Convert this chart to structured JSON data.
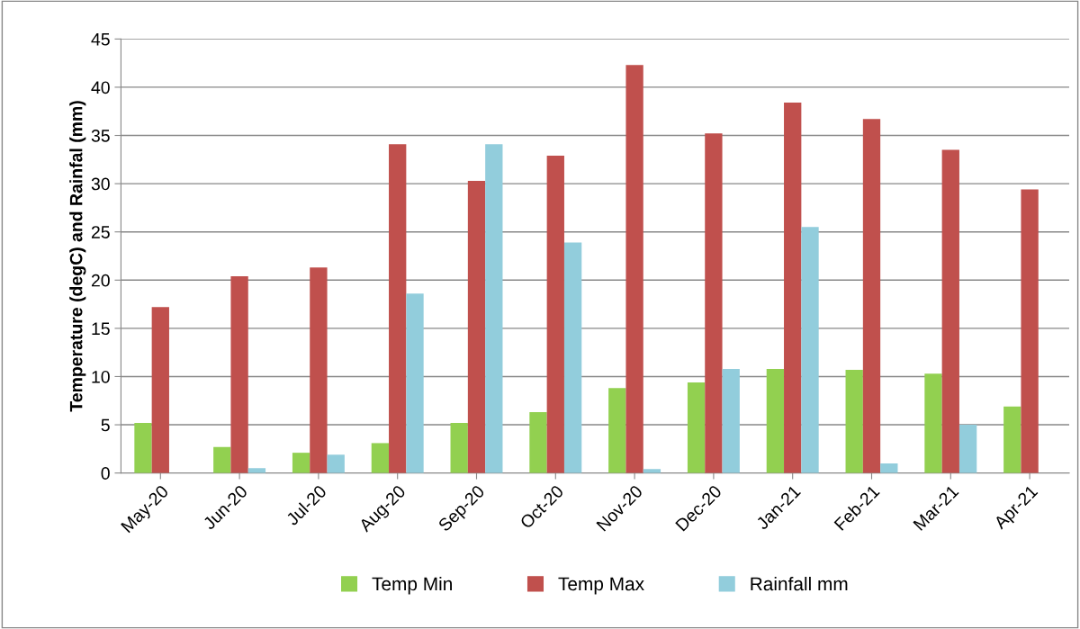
{
  "chart_data": {
    "type": "bar",
    "ylabel": "Temperature (degC) and Rainfal (mm)",
    "categories": [
      "May-20",
      "Jun-20",
      "Jul-20",
      "Aug-20",
      "Sep-20",
      "Oct-20",
      "Nov-20",
      "Dec-20",
      "Jan-21",
      "Feb-21",
      "Mar-21",
      "Apr-21"
    ],
    "series": [
      {
        "name": "Temp Min",
        "color": "#92d050",
        "values": [
          5.2,
          2.7,
          2.1,
          3.1,
          5.2,
          6.3,
          8.8,
          9.4,
          10.8,
          10.7,
          10.3,
          6.9
        ]
      },
      {
        "name": "Temp Max",
        "color": "#c0504d",
        "values": [
          17.2,
          20.4,
          21.3,
          34.1,
          30.3,
          32.9,
          42.3,
          35.2,
          38.4,
          36.7,
          33.5,
          29.4
        ]
      },
      {
        "name": "Rainfall mm",
        "color": "#92cddc",
        "values": [
          0,
          0.5,
          1.9,
          18.6,
          34.1,
          23.9,
          0.4,
          10.8,
          25.5,
          1.0,
          5.0,
          0
        ]
      }
    ],
    "ylim": [
      0,
      45
    ],
    "yticks": [
      0,
      5,
      10,
      15,
      20,
      25,
      30,
      35,
      40,
      45
    ],
    "grid": "y",
    "legend": "bottom"
  }
}
